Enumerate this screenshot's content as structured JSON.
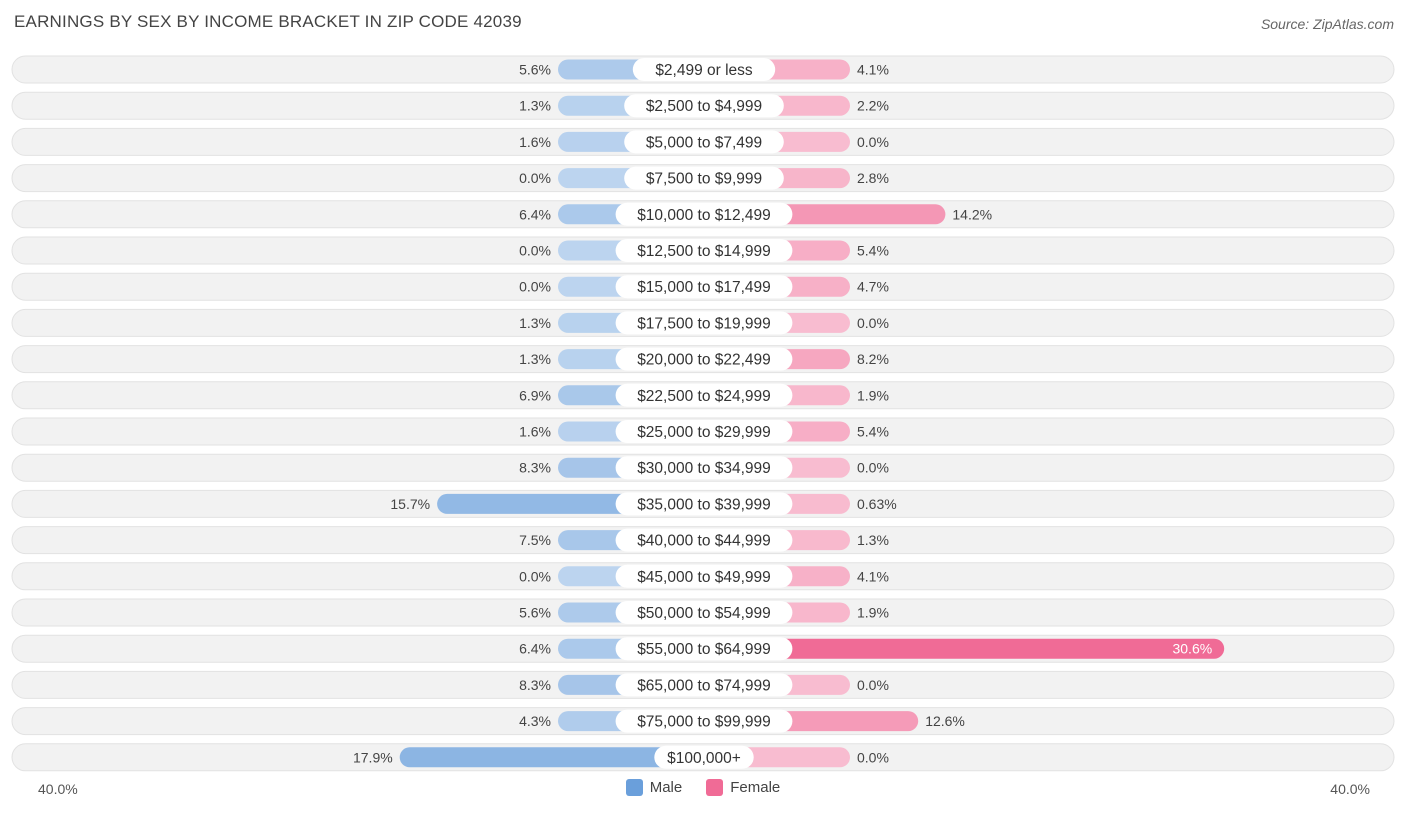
{
  "chart_data": {
    "type": "bar",
    "orientation": "horizontal-diverging",
    "title": "EARNINGS BY SEX BY INCOME BRACKET IN ZIP CODE 42039",
    "source": "Source: ZipAtlas.com",
    "axis_max": 40,
    "axis_left_label": "40.0%",
    "axis_right_label": "40.0%",
    "categories": [
      "$2,499 or less",
      "$2,500 to $4,999",
      "$5,000 to $7,499",
      "$7,500 to $9,999",
      "$10,000 to $12,499",
      "$12,500 to $14,999",
      "$15,000 to $17,499",
      "$17,500 to $19,999",
      "$20,000 to $22,499",
      "$22,500 to $24,999",
      "$25,000 to $29,999",
      "$30,000 to $34,999",
      "$35,000 to $39,999",
      "$40,000 to $44,999",
      "$45,000 to $49,999",
      "$50,000 to $54,999",
      "$55,000 to $64,999",
      "$65,000 to $74,999",
      "$75,000 to $99,999",
      "$100,000+"
    ],
    "series": [
      {
        "name": "Male",
        "color": "#6a9fdb",
        "values": [
          5.6,
          1.3,
          1.6,
          0.0,
          6.4,
          0.0,
          0.0,
          1.3,
          1.3,
          6.9,
          1.6,
          8.3,
          15.7,
          7.5,
          0.0,
          5.6,
          6.4,
          8.3,
          4.3,
          17.9
        ],
        "labels": [
          "5.6%",
          "1.3%",
          "1.6%",
          "0.0%",
          "6.4%",
          "0.0%",
          "0.0%",
          "1.3%",
          "1.3%",
          "6.9%",
          "1.6%",
          "8.3%",
          "15.7%",
          "7.5%",
          "0.0%",
          "5.6%",
          "6.4%",
          "8.3%",
          "4.3%",
          "17.9%"
        ]
      },
      {
        "name": "Female",
        "color": "#f06b96",
        "values": [
          4.1,
          2.2,
          0.0,
          2.8,
          14.2,
          5.4,
          4.7,
          0.0,
          8.2,
          1.9,
          5.4,
          0.0,
          0.63,
          1.3,
          4.1,
          1.9,
          30.6,
          0.0,
          12.6,
          0.0
        ],
        "labels": [
          "4.1%",
          "2.2%",
          "0.0%",
          "2.8%",
          "14.2%",
          "5.4%",
          "4.7%",
          "0.0%",
          "8.2%",
          "1.9%",
          "5.4%",
          "0.0%",
          "0.63%",
          "1.3%",
          "4.1%",
          "1.9%",
          "30.6%",
          "0.0%",
          "12.6%",
          "0.0%"
        ]
      }
    ],
    "legend": [
      "Male",
      "Female"
    ]
  }
}
